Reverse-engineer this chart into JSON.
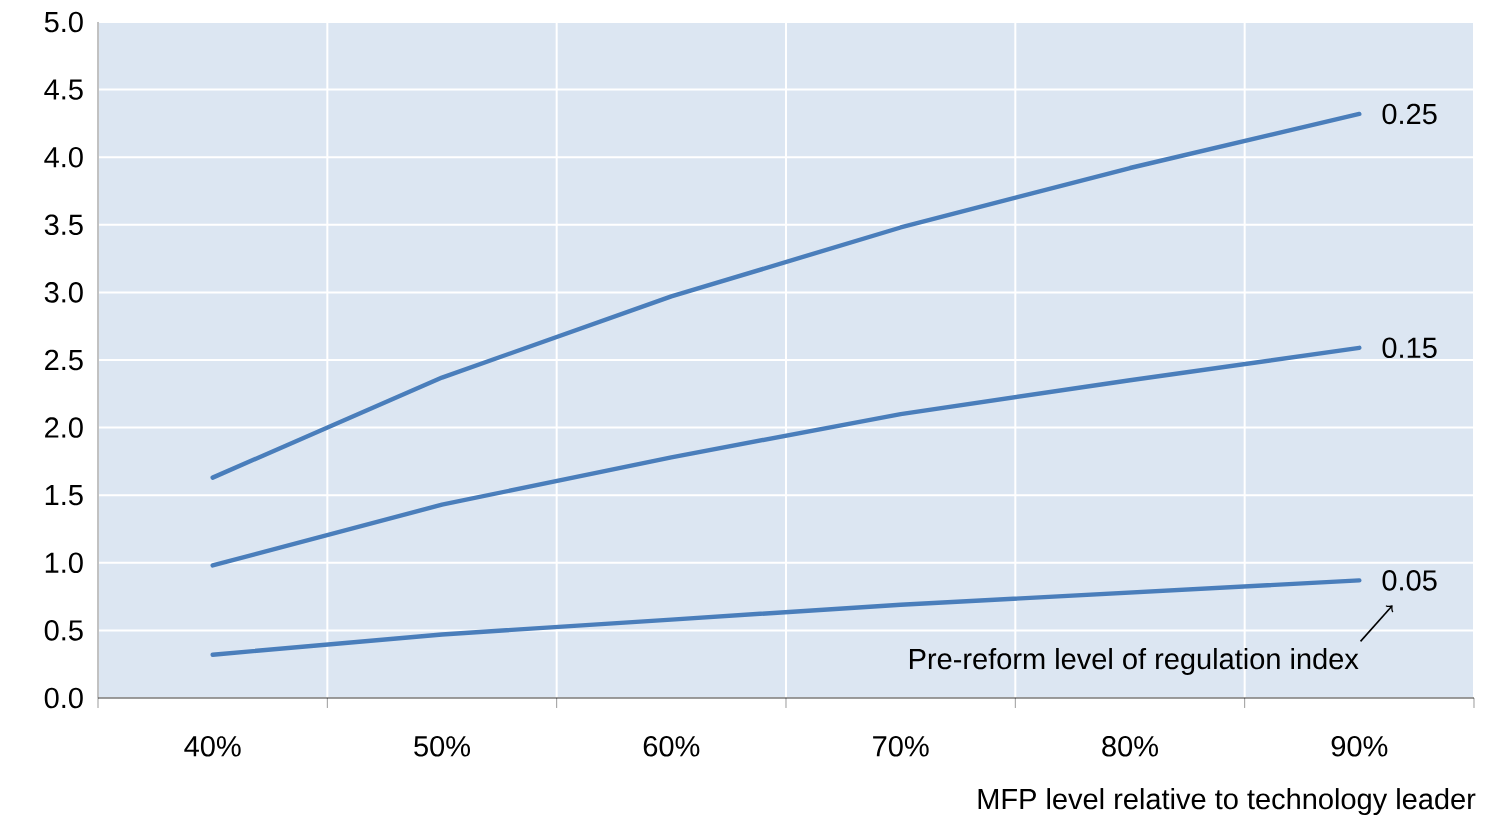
{
  "chart_data": {
    "type": "line",
    "categories": [
      "40%",
      "50%",
      "60%",
      "70%",
      "80%",
      "90%"
    ],
    "xlabel": "MFP level relative to technology leader",
    "series": [
      {
        "name": "0.25",
        "color": "#4a7ebb",
        "values": [
          1.63,
          2.37,
          2.97,
          3.48,
          3.92,
          4.32
        ]
      },
      {
        "name": "0.15",
        "color": "#4a7ebb",
        "values": [
          0.98,
          1.43,
          1.78,
          2.1,
          2.35,
          2.59
        ]
      },
      {
        "name": "0.05",
        "color": "#4a7ebb",
        "values": [
          0.32,
          0.47,
          0.58,
          0.69,
          0.78,
          0.87
        ]
      }
    ],
    "ylim": [
      0,
      5
    ],
    "yticks": [
      {
        "value": 0,
        "label": "0.0"
      },
      {
        "value": 0.5,
        "label": "0.5"
      },
      {
        "value": 1,
        "label": "1.0"
      },
      {
        "value": 1.5,
        "label": "1.5"
      },
      {
        "value": 2,
        "label": "2.0"
      },
      {
        "value": 2.5,
        "label": "2.5"
      },
      {
        "value": 3,
        "label": "3.0"
      },
      {
        "value": 3.5,
        "label": "3.5"
      },
      {
        "value": 4,
        "label": "4.0"
      },
      {
        "value": 4.5,
        "label": "4.5"
      },
      {
        "value": 5,
        "label": "5.0"
      }
    ],
    "annotations": [
      "Pre-reform level of regulation index"
    ],
    "grid": true,
    "marker": "none",
    "line_style": "solid"
  }
}
